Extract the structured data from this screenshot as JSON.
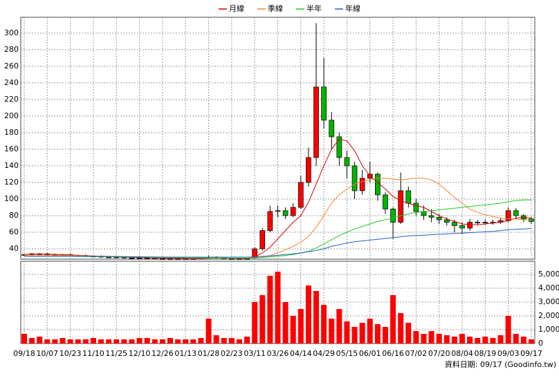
{
  "chart_data": {
    "type": "candlestick",
    "legend": "top",
    "grid": true,
    "footer": "資料日期: 09/17 (Goodinfo.tw)",
    "up_color": "#ff0000",
    "down_color": "#00b400",
    "categories": [
      "09/18",
      null,
      null,
      "10/07",
      null,
      null,
      "10/23",
      null,
      null,
      "11/10",
      null,
      null,
      "11/25",
      null,
      null,
      "12/10",
      null,
      null,
      "12/26",
      null,
      null,
      "01/13",
      null,
      null,
      "01/28",
      null,
      null,
      "02/23",
      null,
      null,
      "03/11",
      null,
      null,
      "03/26",
      null,
      null,
      "04/14",
      null,
      null,
      "04/29",
      null,
      null,
      "05/15",
      null,
      null,
      "06/01",
      null,
      null,
      "06/16",
      null,
      null,
      "07/02",
      null,
      null,
      "07/20",
      null,
      null,
      "08/04",
      null,
      null,
      "08/19",
      null,
      null,
      "09/03",
      null,
      null,
      "09/17"
    ],
    "ylim": [
      27.5,
      319
    ],
    "yticks": [
      40,
      60,
      80,
      100,
      120,
      140,
      160,
      180,
      200,
      220,
      240,
      260,
      280,
      300
    ],
    "open": [
      33,
      33,
      34,
      34,
      33,
      33,
      33,
      32,
      32,
      31,
      31,
      30,
      30,
      30,
      29,
      29,
      29,
      29,
      28,
      28,
      28,
      28,
      28,
      28,
      29,
      30,
      29,
      28,
      28,
      28,
      29,
      40,
      62,
      85,
      86,
      80,
      90,
      120,
      150,
      235,
      195,
      175,
      150,
      140,
      110,
      125,
      130,
      105,
      88,
      72,
      110,
      95,
      85,
      80,
      78,
      75,
      72,
      68,
      65,
      72,
      72,
      72,
      72,
      74,
      86,
      80,
      76
    ],
    "high": [
      34,
      35,
      35,
      35,
      34,
      34,
      34,
      33,
      33,
      32,
      32,
      31,
      31,
      31,
      30,
      30,
      30,
      30,
      29,
      29,
      29,
      29,
      29,
      30,
      32,
      31,
      30,
      29,
      29,
      29,
      42,
      65,
      92,
      92,
      90,
      95,
      128,
      162,
      312,
      270,
      205,
      180,
      158,
      145,
      135,
      145,
      132,
      108,
      90,
      132,
      115,
      100,
      92,
      88,
      82,
      78,
      75,
      72,
      76,
      75,
      75,
      75,
      77,
      90,
      89,
      82,
      78
    ],
    "low": [
      32,
      32,
      33,
      32,
      32,
      32,
      31,
      31,
      30,
      30,
      29,
      29,
      29,
      28,
      28,
      28,
      28,
      28,
      28,
      28,
      28,
      28,
      28,
      28,
      28,
      28,
      28,
      28,
      28,
      28,
      28,
      38,
      60,
      78,
      76,
      78,
      88,
      115,
      140,
      185,
      160,
      140,
      125,
      100,
      105,
      120,
      98,
      82,
      52,
      70,
      90,
      80,
      75,
      72,
      70,
      68,
      60,
      58,
      62,
      69,
      69,
      69,
      70,
      72,
      76,
      72,
      70
    ],
    "close": [
      33,
      34,
      34,
      33,
      33,
      33,
      32,
      32,
      31,
      31,
      30,
      30,
      30,
      29,
      29,
      29,
      29,
      28,
      28,
      28,
      28,
      28,
      28,
      29,
      30,
      29,
      28,
      28,
      28,
      28,
      40,
      62,
      85,
      86,
      80,
      90,
      120,
      150,
      235,
      195,
      175,
      150,
      140,
      110,
      125,
      130,
      105,
      88,
      72,
      110,
      95,
      85,
      80,
      78,
      75,
      72,
      68,
      65,
      72,
      72,
      72,
      72,
      74,
      86,
      80,
      76,
      73
    ],
    "series": [
      {
        "name": "月線",
        "color": "#d00000",
        "values": [
          33,
          33.5,
          33.8,
          33.6,
          33.3,
          33,
          32.6,
          32.2,
          31.8,
          31.4,
          31,
          30.6,
          30.3,
          30,
          29.7,
          29.4,
          29.2,
          29,
          28.8,
          28.6,
          28.4,
          28.3,
          28.2,
          28.3,
          28.6,
          28.8,
          28.8,
          28.6,
          28.4,
          28.3,
          30,
          35,
          42,
          52,
          62,
          72,
          80,
          96,
          118,
          140,
          160,
          172,
          170,
          158,
          140,
          128,
          120,
          112,
          103,
          98,
          95,
          92,
          90,
          85,
          80,
          76,
          73,
          70,
          69,
          69,
          70,
          71,
          72,
          74,
          77,
          78,
          77
        ]
      },
      {
        "name": "季線",
        "color": "#ff7f27",
        "values": [
          32.5,
          32.5,
          32.5,
          32.4,
          32.3,
          32.2,
          32,
          31.8,
          31.6,
          31.4,
          31.2,
          31,
          30.8,
          30.6,
          30.4,
          30.2,
          30,
          29.8,
          29.6,
          29.4,
          29.2,
          29,
          28.9,
          28.8,
          28.8,
          28.8,
          28.7,
          28.7,
          28.7,
          28.7,
          29,
          30,
          32,
          35,
          39,
          43,
          48,
          55,
          66,
          80,
          95,
          105,
          112,
          118,
          121,
          123,
          125,
          125,
          124,
          123,
          124,
          125,
          125,
          123,
          118,
          110,
          102,
          95,
          88,
          84,
          81,
          79,
          77,
          76,
          76,
          75,
          75
        ]
      },
      {
        "name": "半年",
        "color": "#22cc22",
        "values": [
          31,
          31,
          31,
          31,
          31,
          31,
          30.9,
          30.8,
          30.7,
          30.6,
          30.5,
          30.4,
          30.3,
          30.2,
          30.1,
          30,
          29.9,
          29.8,
          29.7,
          29.6,
          29.5,
          29.4,
          29.3,
          29.2,
          29.1,
          29,
          29,
          29,
          29,
          29,
          29.2,
          29.6,
          30.2,
          31,
          32,
          33,
          35,
          37,
          41,
          46,
          51,
          56,
          60,
          64,
          67,
          70,
          73,
          75,
          77,
          80,
          82,
          84,
          85,
          86,
          87,
          88,
          89,
          90,
          91,
          92,
          93,
          94,
          95,
          97,
          98,
          99,
          99
        ]
      },
      {
        "name": "年線",
        "color": "#1f5fd0",
        "values": [
          31,
          31,
          31,
          31,
          31,
          31,
          31,
          31,
          31,
          31,
          30.9,
          30.8,
          30.7,
          30.6,
          30.5,
          30.4,
          30.3,
          30.2,
          30.1,
          30,
          30,
          30,
          30,
          30,
          30,
          30,
          30,
          30,
          30,
          30,
          30.2,
          30.8,
          31.5,
          32.3,
          33.2,
          34,
          35,
          36.5,
          38,
          40,
          43,
          45,
          47,
          48.5,
          49.5,
          50.5,
          51.5,
          52.5,
          53.5,
          54.5,
          55.5,
          56,
          56.5,
          57,
          57.5,
          58,
          58.5,
          59,
          59.5,
          60,
          60.5,
          61,
          62,
          63,
          63.5,
          64,
          64.5
        ]
      }
    ],
    "volume": {
      "color": "#ff0000",
      "ylim": [
        0,
        5950
      ],
      "yticks": [
        0,
        {
          "value": 1000,
          "label": "1,000"
        },
        {
          "value": 2000,
          "label": "2,000"
        },
        {
          "value": 3000,
          "label": "3,000"
        },
        {
          "value": 4000,
          "label": "4,000"
        },
        {
          "value": 5000,
          "label": "5,000"
        }
      ],
      "values": [
        700,
        400,
        500,
        300,
        300,
        400,
        300,
        300,
        300,
        400,
        300,
        300,
        300,
        300,
        300,
        400,
        400,
        300,
        300,
        400,
        300,
        300,
        300,
        400,
        1800,
        600,
        400,
        400,
        300,
        500,
        3000,
        3500,
        4900,
        5200,
        3000,
        2000,
        2500,
        4200,
        3800,
        2800,
        1800,
        2500,
        1600,
        1200,
        1500,
        1800,
        1400,
        1200,
        3500,
        2200,
        1500,
        900,
        700,
        900,
        700,
        600,
        500,
        700,
        500,
        400,
        500,
        400,
        600,
        2000,
        700,
        500,
        300
      ]
    }
  }
}
